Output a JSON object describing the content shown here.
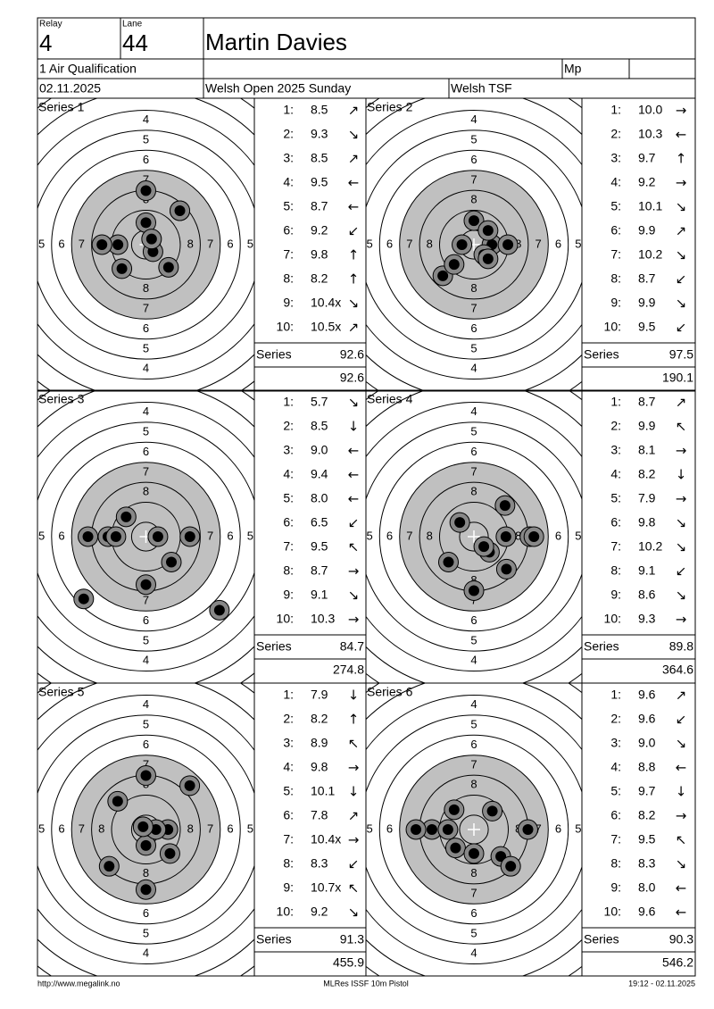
{
  "header": {
    "relay_label": "Relay",
    "relay": "4",
    "lane_label": "Lane",
    "lane": "44",
    "name": "Martin Davies",
    "event": "1 Air Qualification",
    "mp_label": "Mp",
    "date": "02.11.2025",
    "competition": "Welsh Open 2025 Sunday",
    "organizer": "Welsh TSF"
  },
  "ring_labels": [
    4,
    5,
    6,
    7,
    8
  ],
  "series": [
    {
      "label": "Series 1",
      "shots": [
        {
          "no": "1:",
          "score": "8.5",
          "dir": "↗"
        },
        {
          "no": "2:",
          "score": "9.3",
          "dir": "↘"
        },
        {
          "no": "3:",
          "score": "8.5",
          "dir": "↗"
        },
        {
          "no": "4:",
          "score": "9.5",
          "dir": "←"
        },
        {
          "no": "5:",
          "score": "8.7",
          "dir": "←"
        },
        {
          "no": "6:",
          "score": "9.2",
          "dir": "↙"
        },
        {
          "no": "7:",
          "score": "9.8",
          "dir": "↑"
        },
        {
          "no": "8:",
          "score": "8.2",
          "dir": "↑"
        },
        {
          "no": "9:",
          "score": "10.4x",
          "dir": "↘"
        },
        {
          "no": "10:",
          "score": "10.5x",
          "dir": "↗"
        }
      ],
      "total_label": "Series",
      "total": 92.6,
      "cumulative": 92.6
    },
    {
      "label": "Series 2",
      "shots": [
        {
          "no": "1:",
          "score": "10.0",
          "dir": "→"
        },
        {
          "no": "2:",
          "score": "10.3",
          "dir": "←"
        },
        {
          "no": "3:",
          "score": "9.7",
          "dir": "↑"
        },
        {
          "no": "4:",
          "score": "9.2",
          "dir": "→"
        },
        {
          "no": "5:",
          "score": "10.1",
          "dir": "↘"
        },
        {
          "no": "6:",
          "score": "9.9",
          "dir": "↗"
        },
        {
          "no": "7:",
          "score": "10.2",
          "dir": "↘"
        },
        {
          "no": "8:",
          "score": "8.7",
          "dir": "↙"
        },
        {
          "no": "9:",
          "score": "9.9",
          "dir": "↘"
        },
        {
          "no": "10:",
          "score": "9.5",
          "dir": "↙"
        }
      ],
      "total_label": "Series",
      "total": 97.5,
      "cumulative": 190.1
    },
    {
      "label": "Series 3",
      "shots": [
        {
          "no": "1:",
          "score": "5.7",
          "dir": "↘"
        },
        {
          "no": "2:",
          "score": "8.5",
          "dir": "↓"
        },
        {
          "no": "3:",
          "score": "9.0",
          "dir": "←"
        },
        {
          "no": "4:",
          "score": "9.4",
          "dir": "←"
        },
        {
          "no": "5:",
          "score": "8.0",
          "dir": "←"
        },
        {
          "no": "6:",
          "score": "6.5",
          "dir": "↙"
        },
        {
          "no": "7:",
          "score": "9.5",
          "dir": "↖"
        },
        {
          "no": "8:",
          "score": "8.7",
          "dir": "→"
        },
        {
          "no": "9:",
          "score": "9.1",
          "dir": "↘"
        },
        {
          "no": "10:",
          "score": "10.3",
          "dir": "→"
        }
      ],
      "total_label": "Series",
      "total": 84.7,
      "cumulative": 274.8
    },
    {
      "label": "Series 4",
      "shots": [
        {
          "no": "1:",
          "score": "8.7",
          "dir": "↗"
        },
        {
          "no": "2:",
          "score": "9.9",
          "dir": "↖"
        },
        {
          "no": "3:",
          "score": "8.1",
          "dir": "→"
        },
        {
          "no": "4:",
          "score": "8.2",
          "dir": "↓"
        },
        {
          "no": "5:",
          "score": "7.9",
          "dir": "→"
        },
        {
          "no": "6:",
          "score": "9.8",
          "dir": "↘"
        },
        {
          "no": "7:",
          "score": "10.2",
          "dir": "↘"
        },
        {
          "no": "8:",
          "score": "9.1",
          "dir": "↙"
        },
        {
          "no": "9:",
          "score": "8.6",
          "dir": "↘"
        },
        {
          "no": "10:",
          "score": "9.3",
          "dir": "→"
        }
      ],
      "total_label": "Series",
      "total": 89.8,
      "cumulative": 364.6
    },
    {
      "label": "Series 5",
      "shots": [
        {
          "no": "1:",
          "score": "7.9",
          "dir": "↓"
        },
        {
          "no": "2:",
          "score": "8.2",
          "dir": "↑"
        },
        {
          "no": "3:",
          "score": "8.9",
          "dir": "↖"
        },
        {
          "no": "4:",
          "score": "9.8",
          "dir": "→"
        },
        {
          "no": "5:",
          "score": "10.1",
          "dir": "↓"
        },
        {
          "no": "6:",
          "score": "7.8",
          "dir": "↗"
        },
        {
          "no": "7:",
          "score": "10.4x",
          "dir": "→"
        },
        {
          "no": "8:",
          "score": "8.3",
          "dir": "↙"
        },
        {
          "no": "9:",
          "score": "10.7x",
          "dir": "↖"
        },
        {
          "no": "10:",
          "score": "9.2",
          "dir": "↘"
        }
      ],
      "total_label": "Series",
      "total": 91.3,
      "cumulative": 455.9
    },
    {
      "label": "Series 6",
      "shots": [
        {
          "no": "1:",
          "score": "9.6",
          "dir": "↗"
        },
        {
          "no": "2:",
          "score": "9.6",
          "dir": "↙"
        },
        {
          "no": "3:",
          "score": "9.0",
          "dir": "↘"
        },
        {
          "no": "4:",
          "score": "8.8",
          "dir": "←"
        },
        {
          "no": "5:",
          "score": "9.7",
          "dir": "↓"
        },
        {
          "no": "6:",
          "score": "8.2",
          "dir": "→"
        },
        {
          "no": "7:",
          "score": "9.5",
          "dir": "↖"
        },
        {
          "no": "8:",
          "score": "8.3",
          "dir": "↘"
        },
        {
          "no": "9:",
          "score": "8.0",
          "dir": "←"
        },
        {
          "no": "10:",
          "score": "9.6",
          "dir": "←"
        }
      ],
      "total_label": "Series",
      "total": 90.3,
      "cumulative": 546.2
    }
  ],
  "footer": {
    "url": "http://www.megalink.no",
    "software": "MLRes ISSF 10m Pistol",
    "timestamp": "19:12 - 02.11.2025"
  }
}
